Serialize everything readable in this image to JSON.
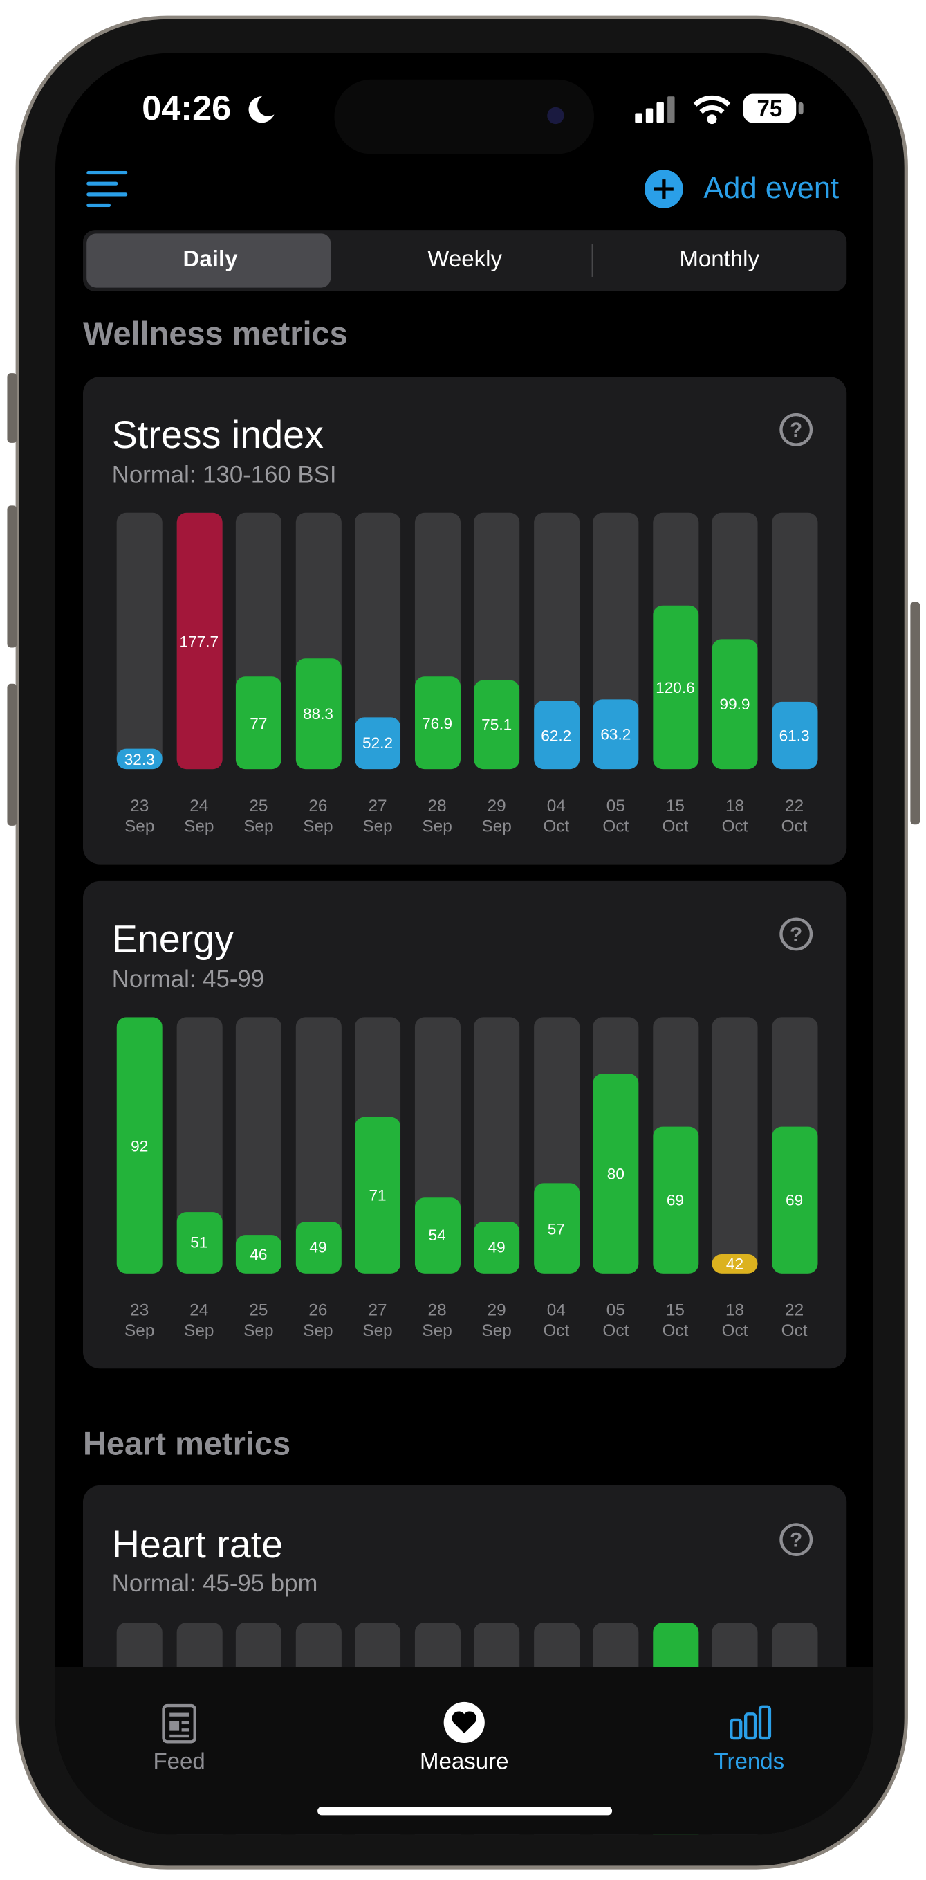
{
  "status_bar": {
    "time": "04:26",
    "battery": "75"
  },
  "header": {
    "action": "Add event"
  },
  "tabs": [
    "Daily",
    "Weekly",
    "Monthly"
  ],
  "selected_tab": 0,
  "wellness_title": "Wellness metrics",
  "chart_data": [
    {
      "type": "bar",
      "title": "Stress index",
      "subtitle": "Normal: 130-160 BSI",
      "categories": [
        "23 Sep",
        "24 Sep",
        "25 Sep",
        "26 Sep",
        "27 Sep",
        "28 Sep",
        "29 Sep",
        "04 Oct",
        "05 Oct",
        "15 Oct",
        "18 Oct",
        "22 Oct"
      ],
      "values": [
        32.3,
        177.7,
        77,
        88.3,
        52.2,
        76.9,
        75.1,
        62.2,
        63.2,
        120.6,
        99.9,
        61.3
      ],
      "colors": [
        "#2a9fd8",
        "#a3173a",
        "#23b33a",
        "#23b33a",
        "#2a9fd8",
        "#23b33a",
        "#23b33a",
        "#2a9fd8",
        "#2a9fd8",
        "#23b33a",
        "#23b33a",
        "#2a9fd8"
      ],
      "ylim": [
        20,
        178
      ]
    },
    {
      "type": "bar",
      "title": "Energy",
      "subtitle": "Normal: 45-99",
      "categories": [
        "23 Sep",
        "24 Sep",
        "25 Sep",
        "26 Sep",
        "27 Sep",
        "28 Sep",
        "29 Sep",
        "04 Oct",
        "05 Oct",
        "15 Oct",
        "18 Oct",
        "22 Oct"
      ],
      "values": [
        92,
        51,
        46,
        49,
        71,
        54,
        49,
        57,
        80,
        69,
        42,
        69
      ],
      "colors": [
        "#23b33a",
        "#23b33a",
        "#23b33a",
        "#23b33a",
        "#23b33a",
        "#23b33a",
        "#23b33a",
        "#23b33a",
        "#23b33a",
        "#23b33a",
        "#dcb21f",
        "#23b33a"
      ],
      "ylim": [
        38,
        92
      ]
    }
  ],
  "heart_title": "Heart metrics",
  "heart_rate": {
    "title": "Heart rate",
    "subtitle": "Normal: 45-95 bpm"
  },
  "nav": [
    "Feed",
    "Measure",
    "Trends"
  ]
}
